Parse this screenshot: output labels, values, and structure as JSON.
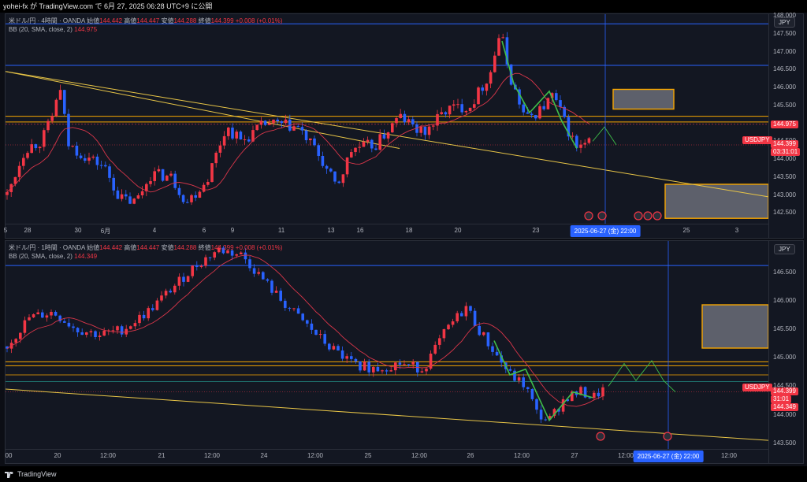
{
  "header": {
    "text": "yohei-fx が TradingView.com で 6月 27, 2025 06:28 UTC+9 に公開"
  },
  "panels": [
    {
      "legend_line1_prefix": "米ドル/円 · 4時間 · OANDA",
      "ohlc": {
        "o_label": "始値",
        "o": "144.442",
        "h_label": "高値",
        "h": "144.447",
        "l_label": "安値",
        "l": "144.288",
        "c_label": "終値",
        "c": "144.399",
        "chg": "+0.008 (+0.01%)"
      },
      "bb_label": "BB (20, SMA, close, 2)",
      "bb_value": "144.975",
      "currency": "JPY",
      "price_ticks": [
        "148.000",
        "147.500",
        "147.000",
        "146.500",
        "146.000",
        "145.500",
        "144.975",
        "144.500",
        "144.000",
        "143.500",
        "143.000",
        "142.500"
      ],
      "symbol_tag": "USDJPY",
      "price_tag": "144.399",
      "countdown": "03:31:01",
      "bb_tag": "144.975",
      "time_ticks": [
        "28",
        "30",
        "6月",
        "4",
        "6",
        "9",
        "11",
        "13",
        "16",
        "18",
        "20",
        "23",
        "25",
        "3",
        "5"
      ],
      "cursor_date": "2025-06-27 (金)   22:00",
      "ymin": 142.2,
      "ymax": 148.05,
      "lines": {
        "h1": 147.78,
        "h2": 146.62,
        "band_top": 145.2,
        "band_bot": 145.04,
        "bb": 144.975,
        "last": 144.399
      },
      "trend": {
        "x0": 0,
        "y0": 146.45,
        "x1": 968,
        "y1": 142.95
      },
      "boxes": [
        {
          "x0": 771,
          "x1": 848,
          "y0": 145.95,
          "y1": 145.4,
          "stroke": "#f7a600"
        },
        {
          "x0": 837,
          "x1": 968,
          "y0": 143.3,
          "y1": 142.35,
          "stroke": "#f7a600"
        }
      ],
      "cursor_x": 761,
      "candles_seed": "p1"
    },
    {
      "legend_line1_prefix": "米ドル/円 · 1時間 · OANDA",
      "ohlc": {
        "o_label": "始値",
        "o": "144.442",
        "h_label": "高値",
        "h": "144.447",
        "l_label": "安値",
        "l": "144.288",
        "c_label": "終値",
        "c": "144.399",
        "chg": "+0.008 (+0.01%)"
      },
      "bb_label": "BB (20, SMA, close, 2)",
      "bb_value": "144.349",
      "currency": "JPY",
      "price_ticks": [
        "146.500",
        "146.000",
        "145.500",
        "145.000",
        "144.500",
        "144.000",
        "143.500"
      ],
      "symbol_tag": "USDJPY",
      "price_tag": "144.399",
      "countdown": "31:01",
      "bb_tag": "144.349",
      "time_ticks": [
        "00",
        "20",
        "12:00",
        "21",
        "12:00",
        "24",
        "12:00",
        "25",
        "12:00",
        "26",
        "12:00",
        "27",
        "12:00",
        "12:00"
      ],
      "cursor_date": "2025-06-27 (金)   22:00",
      "ymin": 143.4,
      "ymax": 147.05,
      "lines": {
        "h1": 146.62,
        "band_top": 144.93,
        "band_bot": 144.86,
        "o1": 144.7,
        "o2": 144.58,
        "last": 144.399
      },
      "trend": {
        "x0": 0,
        "y0": 144.45,
        "x1": 968,
        "y1": 143.55
      },
      "boxes": [
        {
          "x0": 884,
          "x1": 968,
          "y0": 145.93,
          "y1": 145.17,
          "stroke": "#f7a600"
        }
      ],
      "cursor_x": 841,
      "candles_seed": "p2"
    }
  ],
  "footer": {
    "brand": "TradingView"
  },
  "colors": {
    "bull": "#f23645",
    "bear": "#2962ff",
    "bb": "#d9364a",
    "trend": "#e8c547",
    "orange": "#f7a600",
    "blue_line": "#2962ff",
    "bg": "#131722"
  }
}
